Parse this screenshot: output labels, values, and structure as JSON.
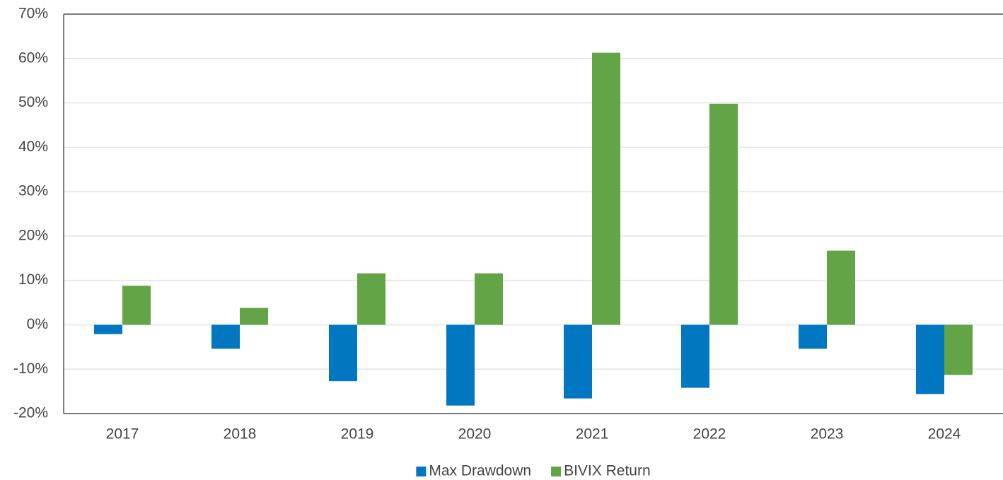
{
  "chart_data": {
    "type": "bar",
    "categories": [
      "2017",
      "2018",
      "2019",
      "2020",
      "2021",
      "2022",
      "2023",
      "2024"
    ],
    "series": [
      {
        "name": "Max Drawdown",
        "color": "#0077c0",
        "values": [
          -2.1,
          -5.4,
          -12.7,
          -18.2,
          -16.6,
          -14.2,
          -5.4,
          -15.6
        ]
      },
      {
        "name": "BIVIX Return",
        "color": "#62a446",
        "values": [
          8.8,
          3.8,
          11.6,
          11.6,
          61.3,
          49.8,
          16.7,
          -11.3
        ]
      }
    ],
    "ylim": [
      -20,
      70
    ],
    "yticks": [
      {
        "value": -20,
        "label": "-20%"
      },
      {
        "value": -10,
        "label": "-10%"
      },
      {
        "value": 0,
        "label": "0%"
      },
      {
        "value": 10,
        "label": "10%"
      },
      {
        "value": 20,
        "label": "20%"
      },
      {
        "value": 30,
        "label": "30%"
      },
      {
        "value": 40,
        "label": "40%"
      },
      {
        "value": 50,
        "label": "50%"
      },
      {
        "value": 60,
        "label": "60%"
      },
      {
        "value": 70,
        "label": "70%"
      }
    ],
    "grid": true,
    "legend": "bottom"
  }
}
